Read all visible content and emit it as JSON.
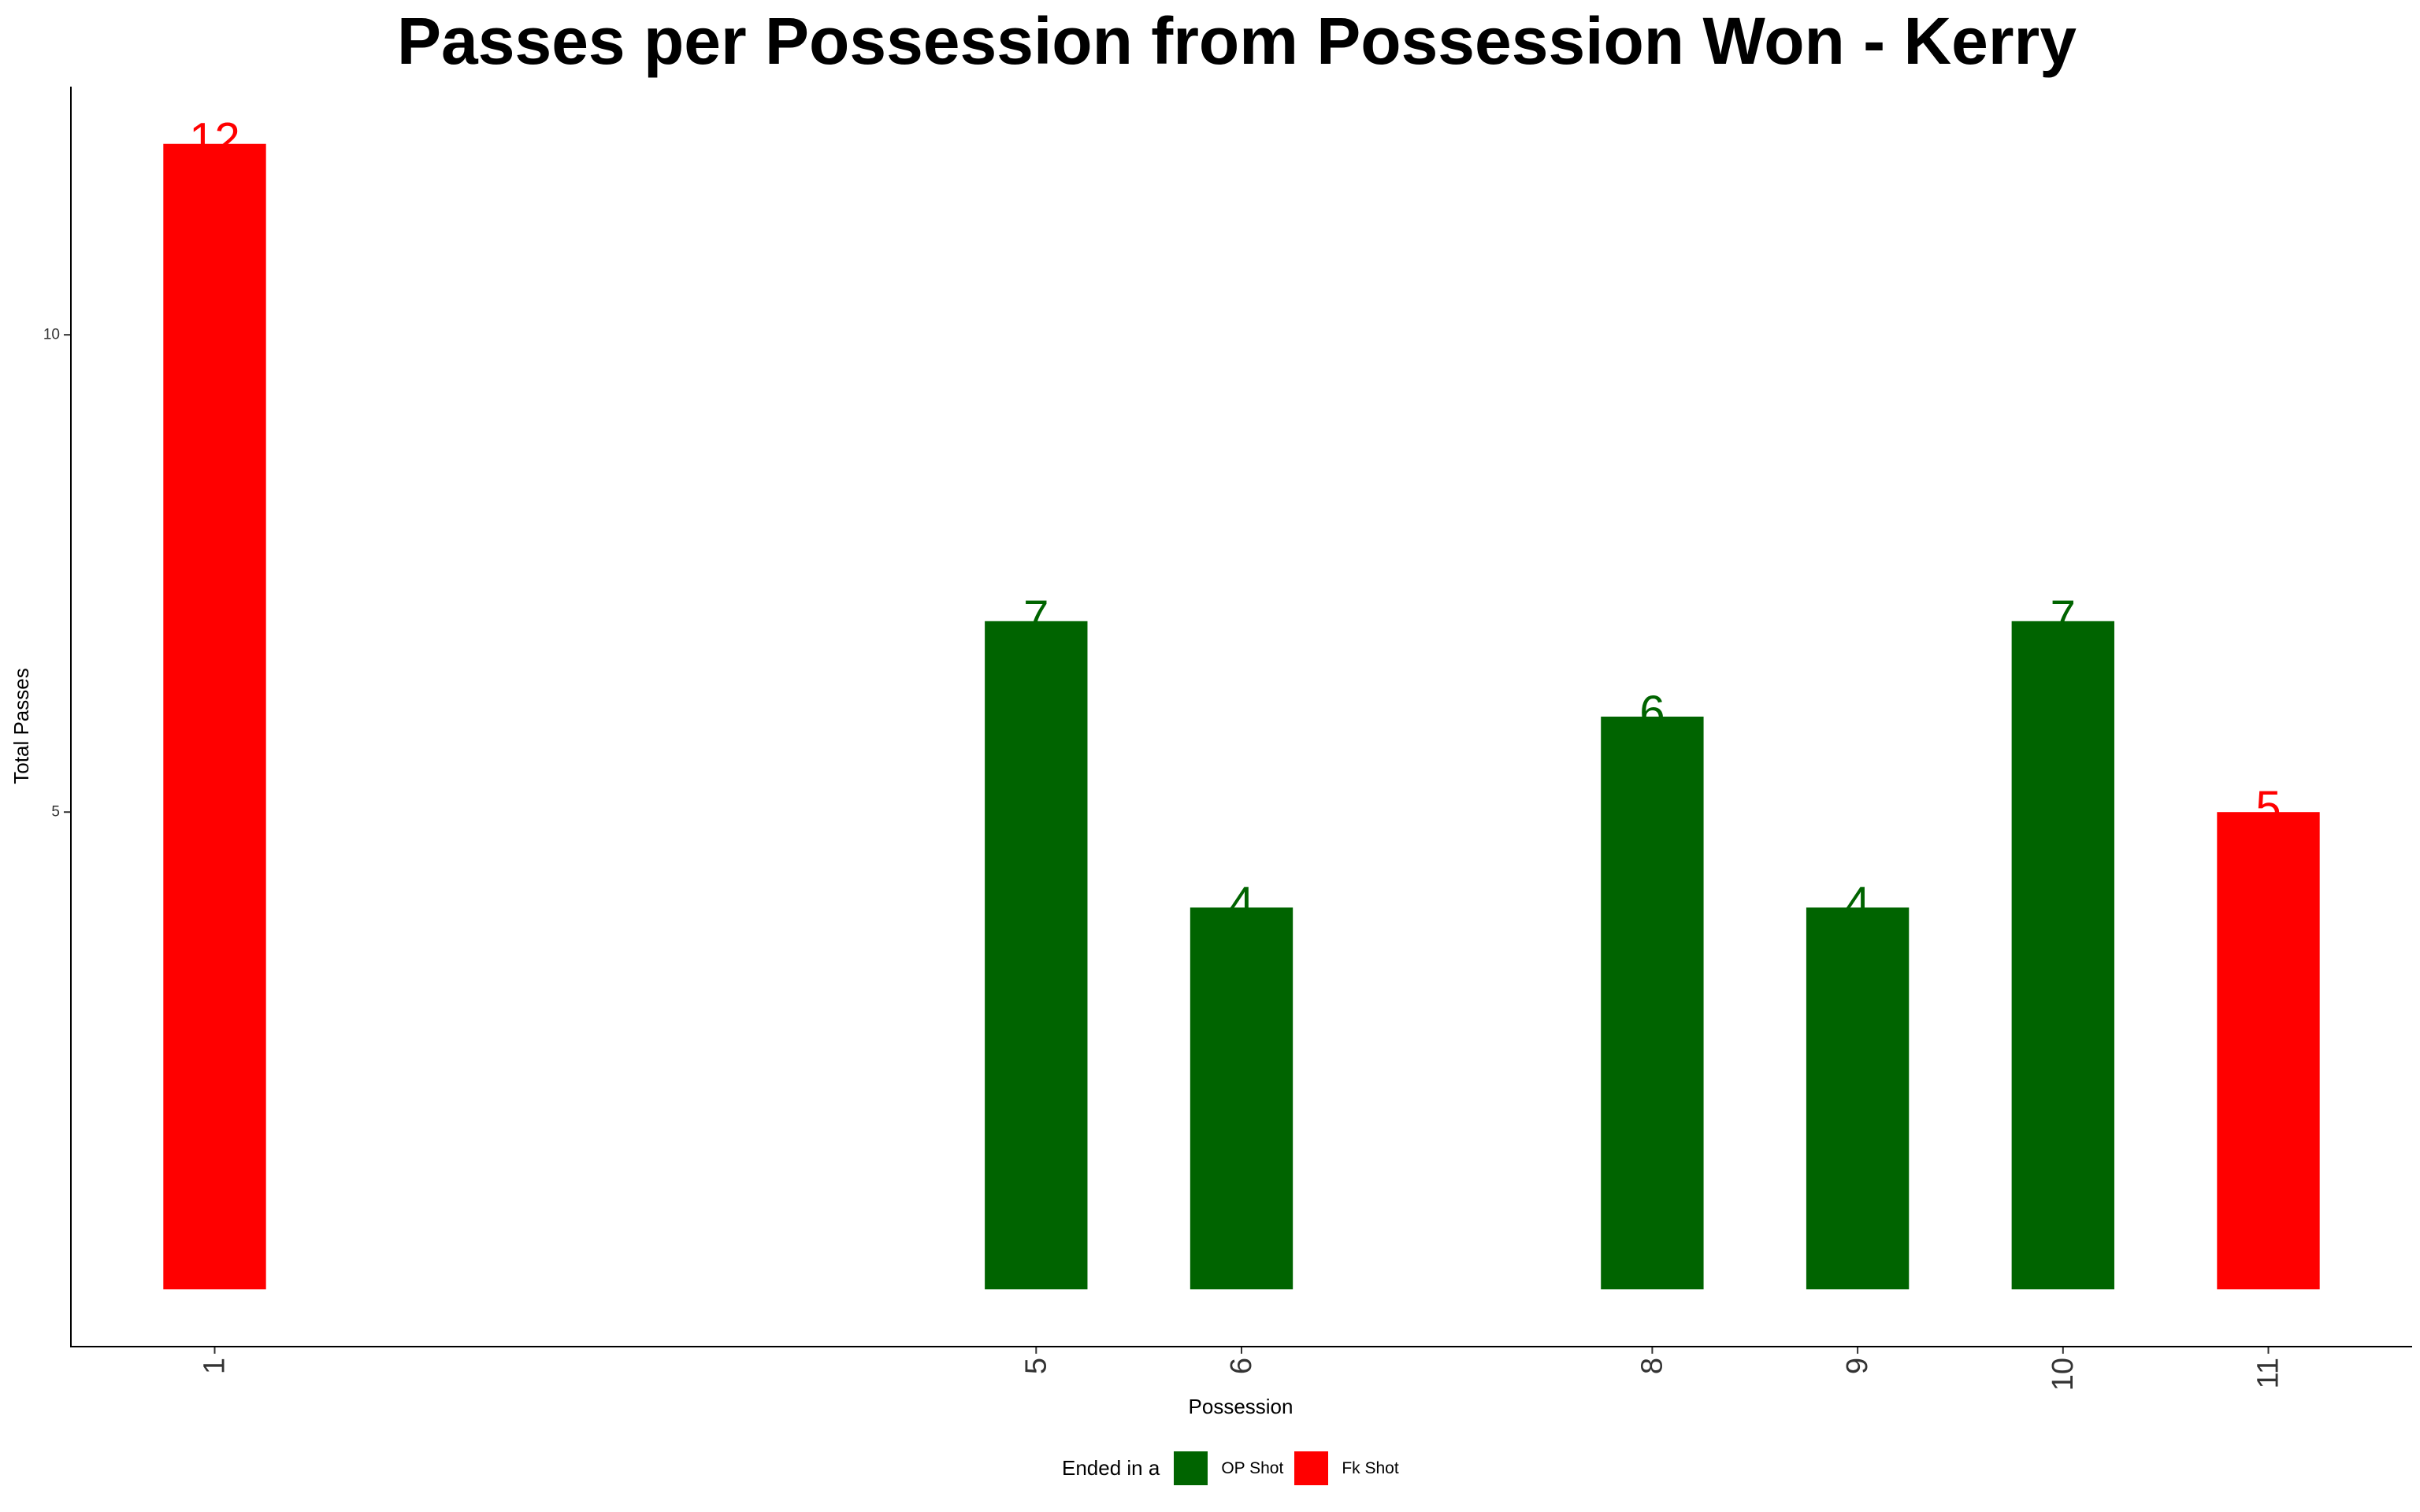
{
  "chart_data": {
    "type": "bar",
    "title": "Passes per Possession from Possession Won - Kerry",
    "xlabel": "Possession",
    "ylabel": "Total Passes",
    "categories": [
      "1",
      "5",
      "6",
      "8",
      "9",
      "10",
      "11"
    ],
    "x": [
      1,
      5,
      6,
      8,
      9,
      10,
      11
    ],
    "values": [
      12,
      7,
      4,
      6,
      4,
      7,
      5
    ],
    "ended_in": [
      "Fk Shot",
      "OP Shot",
      "OP Shot",
      "OP Shot",
      "OP Shot",
      "OP Shot",
      "Fk Shot"
    ],
    "xlim": [
      0.3,
      11.7
    ],
    "ylim": [
      -0.6,
      12.6
    ],
    "yticks": [
      5,
      10
    ],
    "grid": false,
    "legend": {
      "title": "Ended in a",
      "position": "bottom",
      "entries": [
        {
          "label": "OP Shot",
          "color": "#006400"
        },
        {
          "label": "Fk Shot",
          "color": "#FF0000"
        }
      ]
    }
  }
}
